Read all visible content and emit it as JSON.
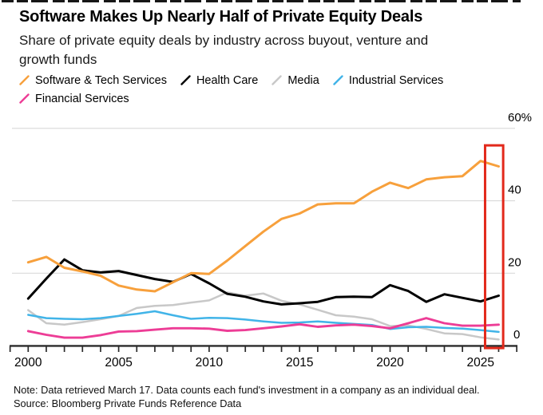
{
  "header": {
    "title": "Software Makes Up Nearly Half of Private Equity Deals",
    "subtitle_lines": [
      "Share of private equity deals by industry across buyout, venture and",
      "growth funds"
    ]
  },
  "colors": {
    "background": "#FFFFFF",
    "grid": "#D9D9D9",
    "axis": "#2B2B2B",
    "text": "#000000",
    "highlight_red": "#E2291B"
  },
  "chart_data": {
    "type": "line",
    "title": "Software Makes Up Nearly Half of Private Equity Deals",
    "subtitle": "Share of private equity deals by industry across buyout, venture and growth funds",
    "unit": "%",
    "grid": "horizontal-only",
    "legend_position": "top-left",
    "xlim": [
      1999,
      2027
    ],
    "ylim": [
      0,
      60
    ],
    "x": [
      2000,
      2001,
      2002,
      2003,
      2004,
      2005,
      2006,
      2007,
      2008,
      2009,
      2010,
      2011,
      2012,
      2013,
      2014,
      2015,
      2016,
      2017,
      2018,
      2019,
      2020,
      2021,
      2022,
      2023,
      2024,
      2025,
      2026
    ],
    "x_tick_labels": [
      "2000",
      "2005",
      "2010",
      "2015",
      "2020",
      "2025"
    ],
    "y_ticks": [
      {
        "value": 0,
        "label": "0"
      },
      {
        "value": 20,
        "label": "20"
      },
      {
        "value": 40,
        "label": "40"
      },
      {
        "value": 60,
        "label": "60%"
      }
    ],
    "series": [
      {
        "name": "Software & Tech Services",
        "color": "#F7A03C",
        "values": [
          23,
          24.5,
          21.5,
          20.5,
          19.3,
          16.6,
          15.5,
          15,
          17.5,
          20,
          19.8,
          23.5,
          27.5,
          31.5,
          35,
          36.5,
          39,
          39.3,
          39.3,
          42.5,
          45,
          43.5,
          45.9,
          46.5,
          46.8,
          51,
          49.5
        ]
      },
      {
        "name": "Health Care",
        "color": "#000000",
        "values": [
          13,
          18.5,
          23.8,
          20.8,
          20.2,
          20.6,
          19.5,
          18.4,
          17.6,
          19.8,
          17.2,
          14.3,
          13.5,
          12.2,
          11.4,
          11.7,
          12.1,
          13.4,
          13.5,
          13.4,
          16.7,
          15.1,
          12.1,
          14.2,
          13.2,
          12.2,
          13.8
        ]
      },
      {
        "name": "Media",
        "color": "#C8C8C8",
        "values": [
          9.8,
          6.2,
          5.8,
          6.5,
          7.3,
          8.2,
          10.4,
          11,
          11.2,
          11.9,
          12.5,
          14.7,
          13.8,
          14.4,
          12.4,
          11.4,
          9.9,
          8.4,
          8,
          7.3,
          5.4,
          5.6,
          4.6,
          3.4,
          3.2,
          2.3,
          1.7
        ]
      },
      {
        "name": "Industrial Services",
        "color": "#41B4E8",
        "values": [
          8.5,
          7.6,
          7.4,
          7.3,
          7.6,
          8.2,
          8.8,
          9.5,
          8.4,
          7.4,
          7.7,
          7.6,
          7.2,
          6.7,
          6.3,
          6.4,
          6.7,
          6.3,
          6,
          5.7,
          4.6,
          5.1,
          5.2,
          4.9,
          4.7,
          4.3,
          3.8
        ]
      },
      {
        "name": "Financial Services",
        "color": "#ED3D96",
        "values": [
          4,
          3,
          2.2,
          2.2,
          2.9,
          3.9,
          4,
          4.4,
          4.8,
          4.8,
          4.7,
          4.1,
          4.3,
          4.8,
          5.3,
          5.9,
          5.2,
          5.6,
          5.8,
          5.4,
          4.8,
          6.2,
          7.6,
          6.2,
          5.5,
          5.5,
          5.8
        ]
      }
    ],
    "highlight": {
      "shape": "rect",
      "x_from": 2025.25,
      "x_to": 2026.25,
      "y_from": 0,
      "y_to": 55.3,
      "color": "#E2291B",
      "meaning": "red box highlighting the most recent data points"
    }
  },
  "footer": {
    "note": "Note: Data retrieved March 17. Data counts each fund's investment in a company as an individual deal.",
    "source": "Source: Bloomberg Private Funds Reference Data"
  }
}
